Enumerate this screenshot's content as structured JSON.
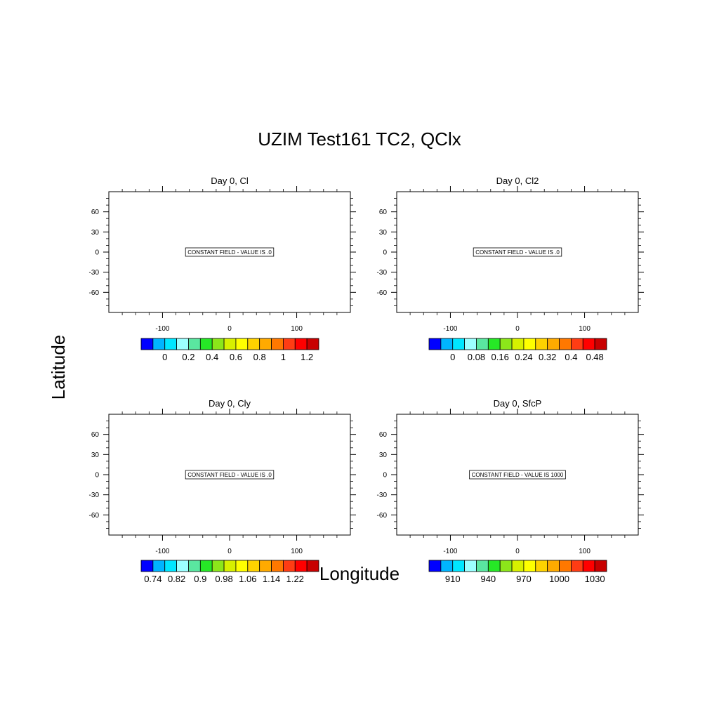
{
  "figure": {
    "title": "UZIM Test161 TC2, QClx",
    "xlabel": "Longitude",
    "ylabel": "Latitude"
  },
  "palette": [
    "#0000ff",
    "#00b4ff",
    "#00e6ff",
    "#9cffff",
    "#5ae6a0",
    "#26e826",
    "#8ce61a",
    "#d7f000",
    "#ffff00",
    "#ffd200",
    "#ffaa00",
    "#ff7800",
    "#ff3c14",
    "#ff0000",
    "#c80000"
  ],
  "chart_data": [
    {
      "type": "contour",
      "title": "Day 0, Cl",
      "annotation": "CONSTANT FIELD - VALUE IS .0",
      "constant_value": 0,
      "xlim": [
        -180,
        180
      ],
      "ylim": [
        -90,
        90
      ],
      "xticks": [
        -100,
        0,
        100
      ],
      "yticks": [
        60,
        30,
        0,
        -30,
        -60
      ],
      "xticklabels": [
        "-100",
        "0",
        "100"
      ],
      "yticklabels": [
        "60",
        "30",
        "0",
        "-30",
        "-60"
      ],
      "colorbar": {
        "boxes": 15,
        "labels": [
          "0",
          "0.2",
          "0.4",
          "0.6",
          "0.8",
          "1",
          "1.2"
        ],
        "label_boundaries": [
          2,
          4,
          6,
          8,
          10,
          12,
          14
        ]
      }
    },
    {
      "type": "contour",
      "title": "Day 0, Cl2",
      "annotation": "CONSTANT FIELD - VALUE IS .0",
      "constant_value": 0,
      "xlim": [
        -180,
        180
      ],
      "ylim": [
        -90,
        90
      ],
      "xticks": [
        -100,
        0,
        100
      ],
      "yticks": [
        60,
        30,
        0,
        -30,
        -60
      ],
      "xticklabels": [
        "-100",
        "0",
        "100"
      ],
      "yticklabels": [
        "60",
        "30",
        "0",
        "-30",
        "-60"
      ],
      "colorbar": {
        "boxes": 15,
        "labels": [
          "0",
          "0.08",
          "0.16",
          "0.24",
          "0.32",
          "0.4",
          "0.48"
        ],
        "label_boundaries": [
          2,
          4,
          6,
          8,
          10,
          12,
          14
        ]
      }
    },
    {
      "type": "contour",
      "title": "Day 0, Cly",
      "annotation": "CONSTANT FIELD - VALUE IS .0",
      "constant_value": 0,
      "xlim": [
        -180,
        180
      ],
      "ylim": [
        -90,
        90
      ],
      "xticks": [
        -100,
        0,
        100
      ],
      "yticks": [
        60,
        30,
        0,
        -30,
        -60
      ],
      "xticklabels": [
        "-100",
        "0",
        "100"
      ],
      "yticklabels": [
        "60",
        "30",
        "0",
        "-30",
        "-60"
      ],
      "colorbar": {
        "boxes": 15,
        "labels": [
          "0.74",
          "0.82",
          "0.9",
          "0.98",
          "1.06",
          "1.14",
          "1.22"
        ],
        "label_boundaries": [
          1,
          3,
          5,
          7,
          9,
          11,
          13
        ]
      }
    },
    {
      "type": "contour",
      "title": "Day 0, SfcP",
      "annotation": "CONSTANT FIELD - VALUE IS 1000",
      "constant_value": 1000,
      "xlim": [
        -180,
        180
      ],
      "ylim": [
        -90,
        90
      ],
      "xticks": [
        -100,
        0,
        100
      ],
      "yticks": [
        60,
        30,
        0,
        -30,
        -60
      ],
      "xticklabels": [
        "-100",
        "0",
        "100"
      ],
      "yticklabels": [
        "60",
        "30",
        "0",
        "-30",
        "-60"
      ],
      "colorbar": {
        "boxes": 15,
        "labels": [
          "910",
          "940",
          "970",
          "1000",
          "1030"
        ],
        "label_boundaries": [
          2,
          5,
          8,
          11,
          14
        ]
      }
    }
  ]
}
